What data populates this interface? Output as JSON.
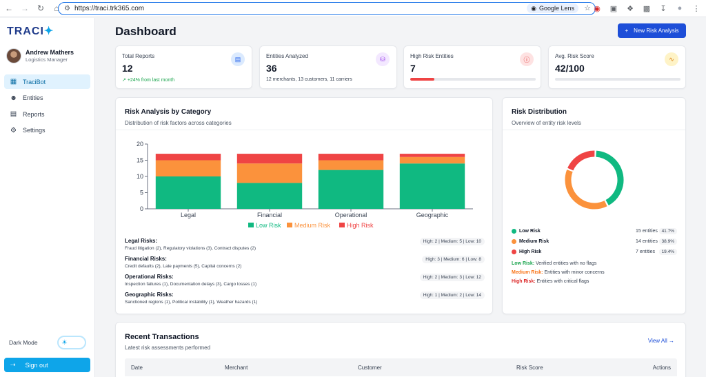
{
  "browser": {
    "url": "https://traci.trk365.com",
    "lens_label": "Google Lens"
  },
  "sidebar": {
    "logo": "TRACI",
    "user": {
      "name": "Andrew Mathers",
      "role": "Logistics Manager"
    },
    "nav": [
      {
        "label": "TraciBot",
        "icon": "bar-chart-icon",
        "active": true
      },
      {
        "label": "Entities",
        "icon": "users-icon",
        "active": false
      },
      {
        "label": "Reports",
        "icon": "clipboard-icon",
        "active": false
      },
      {
        "label": "Settings",
        "icon": "gear-icon",
        "active": false
      }
    ],
    "dark_mode_label": "Dark Mode",
    "signout_label": "Sign out"
  },
  "header": {
    "title": "Dashboard",
    "new_button": "New Risk Analysis"
  },
  "stats": [
    {
      "label": "Total Reports",
      "value": "12",
      "sub": "+24% from last month",
      "icon": "document-icon",
      "icon_bg": "#dbeafe",
      "icon_color": "#2563eb"
    },
    {
      "label": "Entities Analyzed",
      "value": "36",
      "sub": "12 merchants, 13 customers, 11 carriers",
      "icon": "database-icon",
      "icon_bg": "#f3e8ff",
      "icon_color": "#9333ea"
    },
    {
      "label": "High Risk Entities",
      "value": "7",
      "progress": 0.19,
      "icon": "alert-icon",
      "icon_bg": "#fee2e2",
      "icon_color": "#dc2626"
    },
    {
      "label": "Avg. Risk Score",
      "value": "42/100",
      "progress": 0.0,
      "icon": "pulse-icon",
      "icon_bg": "#fef3c7",
      "icon_color": "#d97706"
    }
  ],
  "risk_category": {
    "title": "Risk Analysis by Category",
    "subtitle": "Distribution of risk factors across categories",
    "risks": [
      {
        "title": "Legal Risks:",
        "detail": "Fraud litigation (2), Regulatory violations (3), Contract disputes (2)",
        "pill": "High: 2 | Medium: 5 | Low: 10"
      },
      {
        "title": "Financial Risks:",
        "detail": "Credit defaults (2), Late payments (5), Capital concerns (2)",
        "pill": "High: 3 | Medium: 6 | Low: 8"
      },
      {
        "title": "Operational Risks:",
        "detail": "Inspection failures (1), Documentation delays (3), Cargo losses (1)",
        "pill": "High: 2 | Medium: 3 | Low: 12"
      },
      {
        "title": "Geographic Risks:",
        "detail": "Sanctioned regions (1), Political instability (1), Weather hazards (1)",
        "pill": "High: 1 | Medium: 2 | Low: 14"
      }
    ]
  },
  "chart_data": {
    "type": "bar",
    "stacked": true,
    "categories": [
      "Legal",
      "Financial",
      "Operational",
      "Geographic"
    ],
    "series": [
      {
        "name": "Low Risk",
        "color": "#10b981",
        "values": [
          10,
          8,
          12,
          14
        ]
      },
      {
        "name": "Medium Risk",
        "color": "#fb923c",
        "values": [
          5,
          6,
          3,
          2
        ]
      },
      {
        "name": "High Risk",
        "color": "#ef4444",
        "values": [
          2,
          3,
          2,
          1
        ]
      }
    ],
    "ylim": [
      0,
      20
    ],
    "yticks": [
      0,
      5,
      10,
      15,
      20
    ],
    "legend": "bottom",
    "grid": false
  },
  "distribution": {
    "title": "Risk Distribution",
    "subtitle": "Overview of entity risk levels",
    "items": [
      {
        "name": "Low Risk",
        "count": "15 entities",
        "pct": "41.7%",
        "value": 15,
        "color": "#10b981"
      },
      {
        "name": "Medium Risk",
        "count": "14 entities",
        "pct": "38.9%",
        "value": 14,
        "color": "#fb923c"
      },
      {
        "name": "High Risk",
        "count": "7 entities",
        "pct": "19.4%",
        "value": 7,
        "color": "#ef4444"
      }
    ],
    "definitions": [
      {
        "term": "Low Risk:",
        "text": "Verified entities with no flags",
        "color": "#16a34a"
      },
      {
        "term": "Medium Risk:",
        "text": "Entities with minor concerns",
        "color": "#f97316"
      },
      {
        "term": "High Risk:",
        "text": "Entities with critical flags",
        "color": "#dc2626"
      }
    ]
  },
  "transactions": {
    "title": "Recent Transactions",
    "subtitle": "Latest risk assessments performed",
    "view_all": "View All",
    "columns": [
      "Date",
      "Merchant",
      "Customer",
      "Risk Score",
      "Actions"
    ]
  }
}
